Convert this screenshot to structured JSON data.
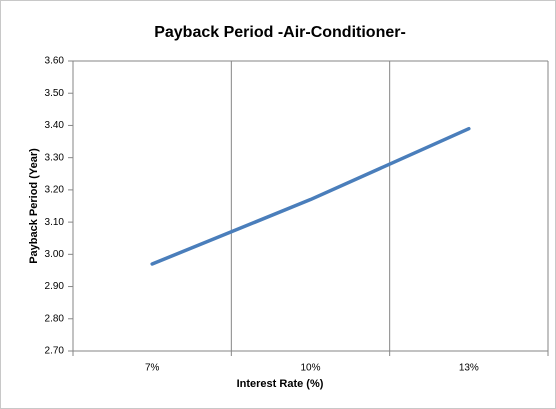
{
  "chart_data": {
    "type": "line",
    "title": "Payback Period -Air-Conditioner-",
    "x_label": "Interest Rate (%)",
    "y_label": "Payback Period (Year)",
    "categories": [
      "7%",
      "10%",
      "13%"
    ],
    "series": [
      {
        "name": "Payback Period",
        "color": "#4a7ebb",
        "values": [
          2.97,
          3.17,
          3.39
        ]
      }
    ],
    "ylim": [
      2.7,
      3.6
    ],
    "yticks": [
      {
        "value": 2.7,
        "label": "2.70"
      },
      {
        "value": 2.8,
        "label": "2.80"
      },
      {
        "value": 2.9,
        "label": "2.90"
      },
      {
        "value": 3.0,
        "label": "3.00"
      },
      {
        "value": 3.1,
        "label": "3.10"
      },
      {
        "value": 3.2,
        "label": "3.20"
      },
      {
        "value": 3.3,
        "label": "3.30"
      },
      {
        "value": 3.4,
        "label": "3.40"
      },
      {
        "value": 3.5,
        "label": "3.50"
      },
      {
        "value": 3.6,
        "label": "3.60"
      }
    ]
  }
}
